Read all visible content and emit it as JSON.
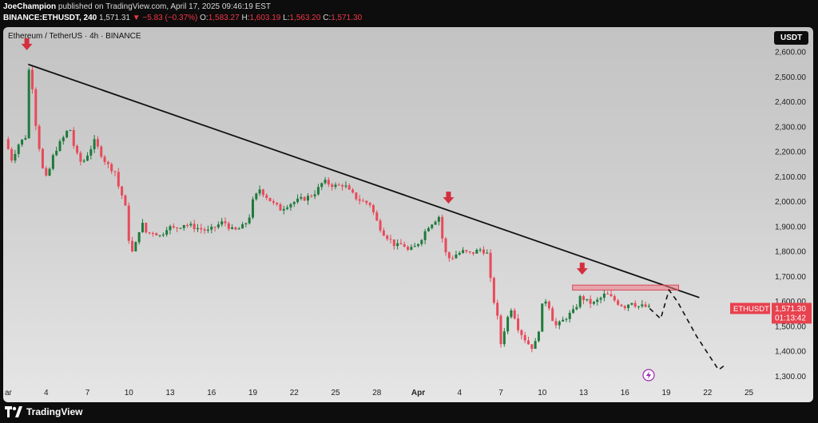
{
  "header": {
    "author": "JoeChampion",
    "published": " published on TradingView.com, April 17, 2025 09:46:19 EST",
    "symbol": "BINANCE:ETHUSDT, 240",
    "last": "1,571.31",
    "change": "▼ −5.83 (−0.37%)",
    "open_label": "O:",
    "open": "1,583.27",
    "high_label": "H:",
    "high": "1,603.19",
    "low_label": "L:",
    "low": "1,563.20",
    "close_label": "C:",
    "close": "1,571.30"
  },
  "chart_title": "Ethereum / TetherUS · 4h · BINANCE",
  "currency_button": "USDT",
  "price_tag": {
    "symbol": "ETHUSDT",
    "price": "1,571.30",
    "countdown": "01:13:42"
  },
  "footer": {
    "brand": "TradingView",
    "logo_icon": "tradingview-logo-icon"
  },
  "colors": {
    "up": "#1e7a3c",
    "down": "#e84a5a",
    "arrow": "#d32f3f",
    "zone": "#f07a85",
    "line": "#111111"
  },
  "chart_data": {
    "type": "candlestick",
    "title": "Ethereum / TetherUS · 4h · BINANCE",
    "ylim": [
      1250,
      2650
    ],
    "yticks": [
      1300,
      1400,
      1500,
      1600,
      1700,
      1800,
      1900,
      2000,
      2100,
      2200,
      2300,
      2400,
      2500,
      2600
    ],
    "ytick_labels": [
      "1,300.00",
      "1,400.00",
      "1,500.00",
      "1,600.00",
      "1,700.00",
      "1,800.00",
      "1,900.00",
      "2,000.00",
      "2,100.00",
      "2,200.00",
      "2,300.00",
      "2,400.00",
      "2,500.00",
      "2,600.00"
    ],
    "xlim": [
      0,
      51.3
    ],
    "xticks": [
      {
        "d": 0,
        "label": "ar"
      },
      {
        "d": 3,
        "label": "4"
      },
      {
        "d": 6,
        "label": "7"
      },
      {
        "d": 9,
        "label": "10"
      },
      {
        "d": 12,
        "label": "13"
      },
      {
        "d": 15,
        "label": "16"
      },
      {
        "d": 18,
        "label": "19"
      },
      {
        "d": 21,
        "label": "22"
      },
      {
        "d": 24,
        "label": "25"
      },
      {
        "d": 27,
        "label": "28"
      },
      {
        "d": 30,
        "label": "Apr"
      },
      {
        "d": 33,
        "label": "4"
      },
      {
        "d": 36,
        "label": "7"
      },
      {
        "d": 39,
        "label": "10"
      },
      {
        "d": 42,
        "label": "13"
      },
      {
        "d": 45,
        "label": "16"
      },
      {
        "d": 48,
        "label": "19"
      },
      {
        "d": 51,
        "label": "22"
      },
      {
        "d": 54,
        "label": "25"
      }
    ],
    "price_path": [
      [
        0,
        2250
      ],
      [
        0.5,
        2170
      ],
      [
        1.0,
        2230
      ],
      [
        1.5,
        2260
      ],
      [
        1.7,
        2540
      ],
      [
        2.0,
        2460
      ],
      [
        2.2,
        2330
      ],
      [
        2.6,
        2180
      ],
      [
        2.9,
        2080
      ],
      [
        3.2,
        2120
      ],
      [
        3.6,
        2200
      ],
      [
        4.2,
        2250
      ],
      [
        4.7,
        2300
      ],
      [
        5.1,
        2200
      ],
      [
        5.6,
        2150
      ],
      [
        6.0,
        2190
      ],
      [
        6.5,
        2240
      ],
      [
        7.0,
        2190
      ],
      [
        7.4,
        2150
      ],
      [
        8.0,
        2120
      ],
      [
        8.3,
        2050
      ],
      [
        8.7,
        2000
      ],
      [
        9.0,
        1850
      ],
      [
        9.2,
        1790
      ],
      [
        9.5,
        1830
      ],
      [
        9.9,
        1920
      ],
      [
        10.3,
        1870
      ],
      [
        10.8,
        1880
      ],
      [
        11.3,
        1860
      ],
      [
        11.8,
        1900
      ],
      [
        12.3,
        1890
      ],
      [
        13.0,
        1910
      ],
      [
        13.6,
        1900
      ],
      [
        14.2,
        1890
      ],
      [
        14.8,
        1880
      ],
      [
        15.3,
        1900
      ],
      [
        15.9,
        1920
      ],
      [
        16.6,
        1880
      ],
      [
        17.3,
        1900
      ],
      [
        17.7,
        1930
      ],
      [
        18.0,
        2000
      ],
      [
        18.5,
        2050
      ],
      [
        19.0,
        2020
      ],
      [
        19.5,
        1990
      ],
      [
        20.0,
        1970
      ],
      [
        20.6,
        1990
      ],
      [
        21.1,
        2000
      ],
      [
        21.6,
        2010
      ],
      [
        22.1,
        2020
      ],
      [
        22.6,
        2040
      ],
      [
        23.1,
        2080
      ],
      [
        23.6,
        2070
      ],
      [
        24.1,
        2060
      ],
      [
        24.6,
        2070
      ],
      [
        25.0,
        2040
      ],
      [
        25.6,
        2010
      ],
      [
        26.0,
        2000
      ],
      [
        26.5,
        1990
      ],
      [
        27.0,
        1920
      ],
      [
        27.4,
        1880
      ],
      [
        27.9,
        1850
      ],
      [
        28.4,
        1820
      ],
      [
        28.9,
        1830
      ],
      [
        29.3,
        1800
      ],
      [
        29.8,
        1820
      ],
      [
        30.2,
        1850
      ],
      [
        30.7,
        1900
      ],
      [
        31.1,
        1920
      ],
      [
        31.5,
        1940
      ],
      [
        31.9,
        1800
      ],
      [
        32.3,
        1770
      ],
      [
        32.8,
        1790
      ],
      [
        33.3,
        1800
      ],
      [
        33.7,
        1790
      ],
      [
        34.2,
        1800
      ],
      [
        34.6,
        1810
      ],
      [
        35.0,
        1790
      ],
      [
        35.2,
        1700
      ],
      [
        35.5,
        1600
      ],
      [
        35.8,
        1520
      ],
      [
        36.0,
        1430
      ],
      [
        36.4,
        1520
      ],
      [
        36.8,
        1580
      ],
      [
        37.2,
        1500
      ],
      [
        37.6,
        1460
      ],
      [
        38.0,
        1430
      ],
      [
        38.4,
        1410
      ],
      [
        38.8,
        1500
      ],
      [
        39.1,
        1620
      ],
      [
        39.5,
        1580
      ],
      [
        39.9,
        1500
      ],
      [
        40.3,
        1510
      ],
      [
        40.8,
        1540
      ],
      [
        41.3,
        1560
      ],
      [
        41.8,
        1620
      ],
      [
        42.2,
        1600
      ],
      [
        42.7,
        1590
      ],
      [
        43.2,
        1610
      ],
      [
        43.6,
        1630
      ],
      [
        44.1,
        1610
      ],
      [
        44.6,
        1590
      ],
      [
        45.0,
        1580
      ],
      [
        45.5,
        1600
      ],
      [
        45.9,
        1580
      ],
      [
        46.4,
        1580
      ],
      [
        46.8,
        1571
      ]
    ],
    "trendline": {
      "from": {
        "d": 1.7,
        "price": 2550
      },
      "to": {
        "d": 50.4,
        "price": 1615
      }
    },
    "resistance_zone": {
      "d_from": 41.2,
      "d_to": 48.9,
      "price_low": 1645,
      "price_high": 1665
    },
    "projection": [
      {
        "d": 46.8,
        "price": 1571
      },
      {
        "d": 47.6,
        "price": 1530
      },
      {
        "d": 48.2,
        "price": 1645
      },
      {
        "d": 48.8,
        "price": 1600
      },
      {
        "d": 50.2,
        "price": 1460
      },
      {
        "d": 51.8,
        "price": 1325
      },
      {
        "d": 52.4,
        "price": 1350
      }
    ],
    "arrows": [
      {
        "d": 1.6,
        "price": 2610
      },
      {
        "d": 32.2,
        "price": 1995
      },
      {
        "d": 41.9,
        "price": 1710
      }
    ],
    "last_price": 1571.3
  }
}
